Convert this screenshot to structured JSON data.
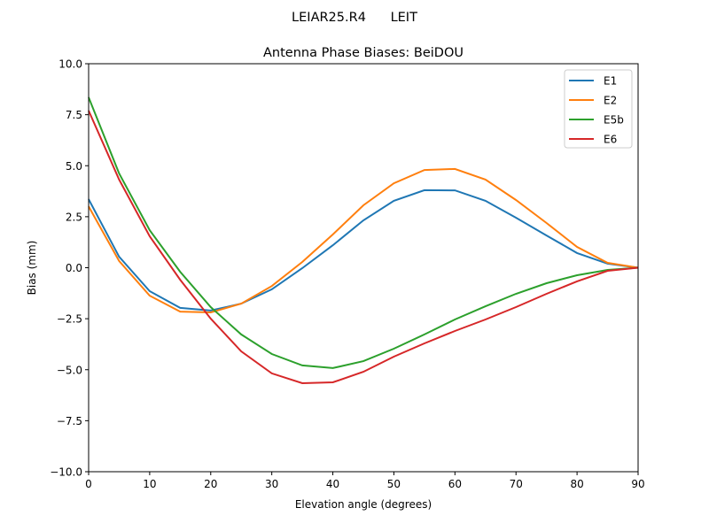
{
  "chart_data": {
    "type": "line",
    "suptitle": "LEIAR25.R4      LEIT",
    "title": "Antenna Phase Biases: BeiDOU",
    "xlabel": "Elevation angle (degrees)",
    "ylabel": "Bias (mm)",
    "xlim": [
      0,
      90
    ],
    "ylim": [
      -10,
      10
    ],
    "xticks": [
      0,
      10,
      20,
      30,
      40,
      50,
      60,
      70,
      80,
      90
    ],
    "yticks": [
      10.0,
      7.5,
      5.0,
      2.5,
      0.0,
      -2.5,
      -5.0,
      -7.5,
      -10.0
    ],
    "ytick_labels": [
      "10.0",
      "7.5",
      "5.0",
      "2.5",
      "0.0",
      "−2.5",
      "−5.0",
      "−7.5",
      "−10.0"
    ],
    "grid": false,
    "legend_position": "top-right",
    "x": [
      0,
      5,
      10,
      15,
      20,
      25,
      30,
      35,
      40,
      45,
      50,
      55,
      60,
      65,
      70,
      75,
      80,
      85,
      90
    ],
    "series": [
      {
        "name": "E1",
        "color": "#1f77b4",
        "values": [
          3.36,
          0.54,
          -1.15,
          -1.97,
          -2.1,
          -1.76,
          -1.06,
          -0.02,
          1.1,
          2.32,
          3.28,
          3.8,
          3.79,
          3.28,
          2.45,
          1.58,
          0.72,
          0.2,
          0.0
        ]
      },
      {
        "name": "E2",
        "color": "#ff7f0e",
        "values": [
          3.0,
          0.33,
          -1.37,
          -2.15,
          -2.19,
          -1.76,
          -0.9,
          0.28,
          1.63,
          3.06,
          4.14,
          4.79,
          4.84,
          4.32,
          3.32,
          2.19,
          1.02,
          0.24,
          0.0
        ]
      },
      {
        "name": "E5b",
        "color": "#2ca02c",
        "values": [
          8.35,
          4.62,
          1.84,
          -0.2,
          -1.93,
          -3.27,
          -4.23,
          -4.79,
          -4.92,
          -4.58,
          -3.97,
          -3.27,
          -2.54,
          -1.89,
          -1.28,
          -0.76,
          -0.37,
          -0.11,
          0.0
        ]
      },
      {
        "name": "E6",
        "color": "#d62728",
        "values": [
          7.7,
          4.32,
          1.54,
          -0.59,
          -2.5,
          -4.1,
          -5.18,
          -5.66,
          -5.62,
          -5.1,
          -4.36,
          -3.71,
          -3.1,
          -2.54,
          -1.93,
          -1.28,
          -0.67,
          -0.15,
          0.0
        ]
      }
    ]
  }
}
